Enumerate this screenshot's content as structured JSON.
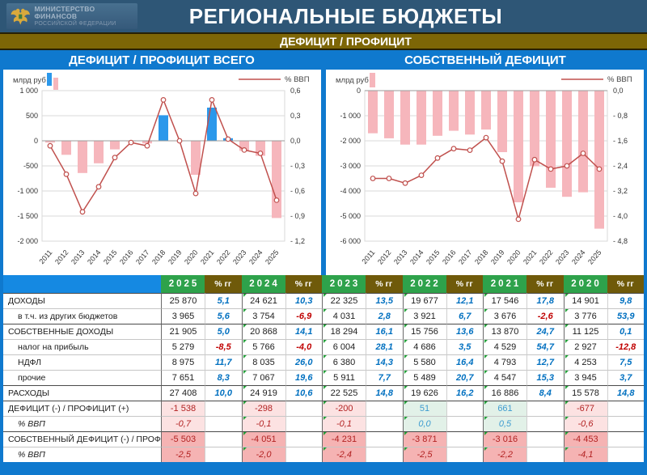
{
  "header": {
    "ministry_line1": "МИНИСТЕРСТВО ФИНАНСОВ",
    "ministry_line2": "РОССИЙСКОЙ ФЕДЕРАЦИИ",
    "title": "РЕГИОНАЛЬНЫЕ БЮДЖЕТЫ"
  },
  "subtitle": "ДЕФИЦИТ / ПРОФИЦИТ",
  "panel_titles": {
    "left": "ДЕФИЦИТ / ПРОФИЦИТ ВСЕГО",
    "right": "СОБСТВЕННЫЙ ДЕФИЦИТ"
  },
  "colors": {
    "navy": "#2E5676",
    "olive": "#7D6606",
    "blue": "#0F79CE",
    "header_cell_blue": "#1589E2",
    "header_green": "#2EA24B",
    "header_brown": "#6F5A0A",
    "bar_positive": "#2B98EB",
    "bar_negative": "#F6B6BC",
    "line": "#C0504D",
    "grid": "#DADADA",
    "zero_line": "#9A9A9A",
    "pct_positive": "#0070C0",
    "pct_negative": "#C00000",
    "deficit_neg_text": "#B22222",
    "deficit_pos_text": "#3E9CD0",
    "bg_pink_light": "#FCE2E2",
    "bg_pink_strong": "#F5B3B3",
    "bg_green_light": "#E2F1E8"
  },
  "chart_data": [
    {
      "type": "bar",
      "title": "ДЕФИЦИТ / ПРОФИЦИТ ВСЕГО",
      "categories": [
        "2011",
        "2012",
        "2013",
        "2014",
        "2015",
        "2016",
        "2017",
        "2018",
        "2019",
        "2020",
        "2021",
        "2022",
        "2023",
        "2024",
        "2025"
      ],
      "series": [
        {
          "name": "млрд руб",
          "type": "bar",
          "axis": "left",
          "values": [
            -35,
            -279,
            -642,
            -448,
            -171,
            -12,
            -52,
            510,
            5,
            -677,
            661,
            51,
            -200,
            -298,
            -1538
          ]
        },
        {
          "name": "% ВВП",
          "type": "line",
          "axis": "right",
          "values": [
            -0.06,
            -0.4,
            -0.85,
            -0.55,
            -0.2,
            -0.02,
            -0.06,
            0.49,
            0.0,
            -0.63,
            0.49,
            0.02,
            -0.11,
            -0.15,
            -0.71
          ]
        }
      ],
      "axis_left": {
        "label": "млрд руб",
        "range": [
          -2000,
          1000
        ],
        "ticks": [
          "1 000",
          "500",
          "0",
          "-500",
          "-1 000",
          "-1 500",
          "-2 000"
        ]
      },
      "axis_right": {
        "label": "% ВВП",
        "range": [
          -1.2,
          0.6
        ],
        "ticks": [
          "0,6",
          "0,3",
          "0,0",
          "- 0,3",
          "- 0,6",
          "- 0,9",
          "- 1,2"
        ]
      },
      "legend_swatches": 2,
      "grid": true,
      "legend_position": "top"
    },
    {
      "type": "bar",
      "title": "СОБСТВЕННЫЙ ДЕФИЦИТ",
      "categories": [
        "2011",
        "2012",
        "2013",
        "2014",
        "2015",
        "2016",
        "2017",
        "2018",
        "2019",
        "2020",
        "2021",
        "2022",
        "2023",
        "2024",
        "2025"
      ],
      "series": [
        {
          "name": "млрд руб",
          "type": "bar",
          "axis": "left",
          "values": [
            -1700,
            -1900,
            -2150,
            -2150,
            -1800,
            -1600,
            -1750,
            -1550,
            -2450,
            -4453,
            -3016,
            -3871,
            -4231,
            -4051,
            -5503
          ]
        },
        {
          "name": "% ВВП",
          "type": "line",
          "axis": "right",
          "values": [
            -2.8,
            -2.8,
            -2.95,
            -2.7,
            -2.15,
            -1.85,
            -1.9,
            -1.5,
            -2.25,
            -4.1,
            -2.2,
            -2.5,
            -2.4,
            -2.0,
            -2.5
          ]
        }
      ],
      "axis_left": {
        "label": "млрд руб",
        "range": [
          -6000,
          0
        ],
        "ticks": [
          "0",
          "-1 000",
          "-2 000",
          "-3 000",
          "-4 000",
          "-5 000",
          "-6 000"
        ]
      },
      "axis_right": {
        "label": "% ВВП",
        "range": [
          -4.8,
          0
        ],
        "ticks": [
          "0,0",
          "- 0,8",
          "- 1,6",
          "- 2,4",
          "- 3,2",
          "- 4,0",
          "- 4,8"
        ]
      },
      "legend_swatches": 1,
      "grid": true,
      "legend_position": "top"
    },
    {
      "type": "table",
      "pct_label": "% гг",
      "years": [
        "2025",
        "2024",
        "2023",
        "2022",
        "2021",
        "2020"
      ],
      "marker_columns": [
        false,
        true,
        true,
        true,
        true,
        true
      ],
      "rows": [
        {
          "label": "ДОХОДЫ",
          "style": "main",
          "sep": true,
          "cells": [
            {
              "v": "25 870",
              "p": "5,1"
            },
            {
              "v": "24 621",
              "p": "10,3"
            },
            {
              "v": "22 325",
              "p": "13,5"
            },
            {
              "v": "19 677",
              "p": "12,1"
            },
            {
              "v": "17 546",
              "p": "17,8"
            },
            {
              "v": "14 901",
              "p": "9,8"
            }
          ]
        },
        {
          "label": "в т.ч. из других бюджетов",
          "style": "sub",
          "sep": false,
          "cells": [
            {
              "v": "3 965",
              "p": "5,6"
            },
            {
              "v": "3 754",
              "p": "-6,9"
            },
            {
              "v": "4 031",
              "p": "2,8"
            },
            {
              "v": "3 921",
              "p": "6,7"
            },
            {
              "v": "3 676",
              "p": "-2,6"
            },
            {
              "v": "3 776",
              "p": "53,9"
            }
          ]
        },
        {
          "label": "СОБСТВЕННЫЕ ДОХОДЫ",
          "style": "main",
          "sep": true,
          "cells": [
            {
              "v": "21 905",
              "p": "5,0"
            },
            {
              "v": "20 868",
              "p": "14,1"
            },
            {
              "v": "18 294",
              "p": "16,1"
            },
            {
              "v": "15 756",
              "p": "13,6"
            },
            {
              "v": "13 870",
              "p": "24,7"
            },
            {
              "v": "11 125",
              "p": "0,1"
            }
          ]
        },
        {
          "label": "налог на прибыль",
          "style": "sub",
          "sep": false,
          "cells": [
            {
              "v": "5 279",
              "p": "-8,5"
            },
            {
              "v": "5 766",
              "p": "-4,0"
            },
            {
              "v": "6 004",
              "p": "28,1"
            },
            {
              "v": "4 686",
              "p": "3,5"
            },
            {
              "v": "4 529",
              "p": "54,7"
            },
            {
              "v": "2 927",
              "p": "-12,8"
            }
          ]
        },
        {
          "label": "НДФЛ",
          "style": "sub",
          "sep": false,
          "cells": [
            {
              "v": "8 975",
              "p": "11,7"
            },
            {
              "v": "8 035",
              "p": "26,0"
            },
            {
              "v": "6 380",
              "p": "14,3"
            },
            {
              "v": "5 580",
              "p": "16,4"
            },
            {
              "v": "4 793",
              "p": "12,7"
            },
            {
              "v": "4 253",
              "p": "7,5"
            }
          ]
        },
        {
          "label": "прочие",
          "style": "sub",
          "sep": false,
          "cells": [
            {
              "v": "7 651",
              "p": "8,3"
            },
            {
              "v": "7 067",
              "p": "19,6"
            },
            {
              "v": "5 911",
              "p": "7,7"
            },
            {
              "v": "5 489",
              "p": "20,7"
            },
            {
              "v": "4 547",
              "p": "15,3"
            },
            {
              "v": "3 945",
              "p": "3,7"
            }
          ]
        },
        {
          "label": "РАСХОДЫ",
          "style": "main",
          "sep": true,
          "cells": [
            {
              "v": "27 408",
              "p": "10,0"
            },
            {
              "v": "24 919",
              "p": "10,6"
            },
            {
              "v": "22 525",
              "p": "14,8"
            },
            {
              "v": "19 626",
              "p": "16,2"
            },
            {
              "v": "16 886",
              "p": "8,4"
            },
            {
              "v": "15 578",
              "p": "14,8"
            }
          ]
        },
        {
          "label": "ДЕФИЦИТ (-) / ПРОФИЦИТ (+)",
          "style": "main",
          "sep": true,
          "highlight": "light",
          "cells": [
            {
              "v": "-1 538",
              "p": ""
            },
            {
              "v": "-298",
              "p": ""
            },
            {
              "v": "-200",
              "p": ""
            },
            {
              "v": "51",
              "p": ""
            },
            {
              "v": "661",
              "p": ""
            },
            {
              "v": "-677",
              "p": ""
            }
          ]
        },
        {
          "label": "% ВВП",
          "style": "subitalic",
          "sep": false,
          "highlight": "light",
          "cells": [
            {
              "v": "-0,7",
              "p": ""
            },
            {
              "v": "-0,1",
              "p": ""
            },
            {
              "v": "-0,1",
              "p": ""
            },
            {
              "v": "0,0",
              "p": ""
            },
            {
              "v": "0,5",
              "p": ""
            },
            {
              "v": "-0,6",
              "p": ""
            }
          ]
        },
        {
          "label": "СОБСТВЕННЫЙ ДЕФИЦИТ (-) / ПРОФИЦИТ (+)",
          "style": "main",
          "sep": true,
          "highlight": "strong",
          "cells": [
            {
              "v": "-5 503",
              "p": ""
            },
            {
              "v": "-4 051",
              "p": ""
            },
            {
              "v": "-4 231",
              "p": ""
            },
            {
              "v": "-3 871",
              "p": ""
            },
            {
              "v": "-3 016",
              "p": ""
            },
            {
              "v": "-4 453",
              "p": ""
            }
          ]
        },
        {
          "label": "% ВВП",
          "style": "subitalic",
          "sep": false,
          "highlight": "strong",
          "cells": [
            {
              "v": "-2,5",
              "p": ""
            },
            {
              "v": "-2,0",
              "p": ""
            },
            {
              "v": "-2,4",
              "p": ""
            },
            {
              "v": "-2,5",
              "p": ""
            },
            {
              "v": "-2,2",
              "p": ""
            },
            {
              "v": "-4,1",
              "p": ""
            }
          ]
        }
      ]
    }
  ]
}
